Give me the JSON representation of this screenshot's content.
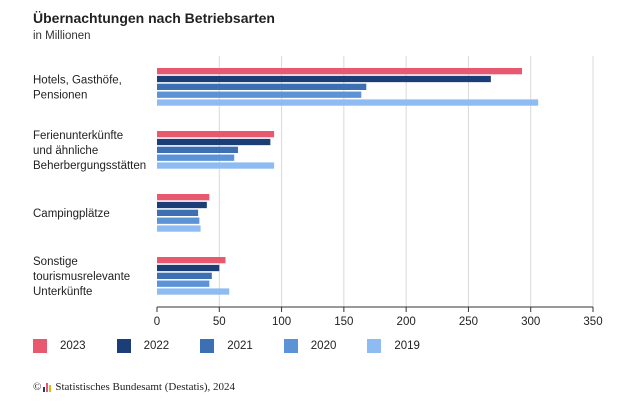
{
  "title": "Übernachtungen nach Betriebsarten",
  "subtitle": "in Millionen",
  "footer": {
    "copyright_symbol": "©",
    "text": "Statistisches Bundesamt (Destatis), 2024"
  },
  "colors": {
    "2023": "#e8596f",
    "2022": "#1b3e78",
    "2021": "#3d6fb3",
    "2020": "#5b93d6",
    "2019": "#8ebcf2",
    "grid": "#d9d9d9",
    "axis": "#333333"
  },
  "chart_data": {
    "type": "bar",
    "orientation": "horizontal",
    "categories": [
      [
        "Hotels, Gasthöfe,",
        "Pensionen"
      ],
      [
        "Ferienunterkünfte",
        "und ähnliche",
        "Beherbergungsstätten"
      ],
      [
        "Campingplätze"
      ],
      [
        "Sonstige",
        "tourismusrelevante",
        "Unterkünfte"
      ]
    ],
    "series": [
      {
        "name": "2023",
        "values": [
          293,
          94,
          42,
          55
        ]
      },
      {
        "name": "2022",
        "values": [
          268,
          91,
          40,
          50
        ]
      },
      {
        "name": "2021",
        "values": [
          168,
          65,
          33,
          44
        ]
      },
      {
        "name": "2020",
        "values": [
          164,
          62,
          34,
          42
        ]
      },
      {
        "name": "2019",
        "values": [
          306,
          94,
          35,
          58
        ]
      }
    ],
    "xlim": [
      0,
      350
    ],
    "xticks": [
      0,
      50,
      100,
      150,
      200,
      250,
      300,
      350
    ],
    "grid": true,
    "legend_position": "bottom-left"
  }
}
